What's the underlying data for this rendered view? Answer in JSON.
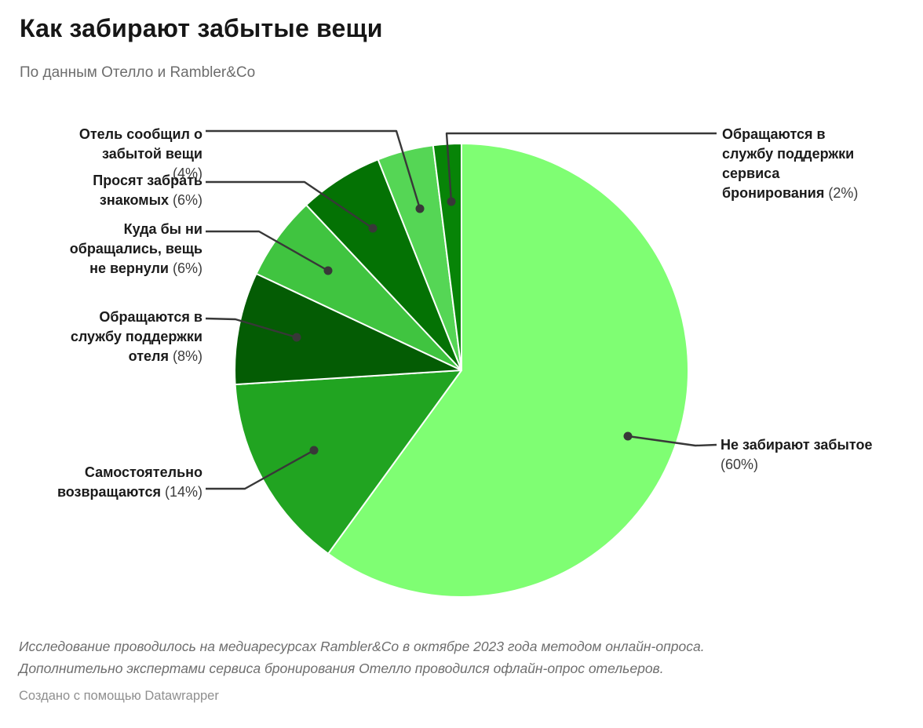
{
  "header": {
    "title": "Как забирают забытые вещи",
    "subtitle": "По данным Отелло и Rambler&Co"
  },
  "chart_data": {
    "type": "pie",
    "title": "Как забирают забытые вещи",
    "subtitle": "По данным Отелло и Rambler&Co",
    "unit": "%",
    "start_angle_deg": -90,
    "direction": "clockwise",
    "slices": [
      {
        "label": "Не забирают забытое",
        "value": 60,
        "pct_text": "(60%)",
        "color": "#7ffe73"
      },
      {
        "label": "Самостоятельно возвращаются",
        "value": 14,
        "pct_text": "(14%)",
        "color": "#21a421"
      },
      {
        "label": "Обращаются в службу поддержки отеля",
        "value": 8,
        "pct_text": "(8%)",
        "color": "#045c04"
      },
      {
        "label": "Куда бы ни обращались, вещь не вернули",
        "value": 6,
        "pct_text": "(6%)",
        "color": "#40c440"
      },
      {
        "label": "Просят забрать знакомых",
        "value": 6,
        "pct_text": "(6%)",
        "color": "#047204"
      },
      {
        "label": "Отель сообщил о забытой вещи",
        "value": 4,
        "pct_text": "(4%)",
        "color": "#55d655"
      },
      {
        "label": "Обращаются в службу поддержки сервиса бронирования",
        "value": 2,
        "pct_text": "(2%)",
        "color": "#078407"
      }
    ],
    "connector_color": "#383838"
  },
  "footer": {
    "note_line1": "Исследование проводилось на медиаресурсах Rambler&Co в октябре 2023 года методом онлайн-опроса.",
    "note_line2": "Дополнительно экспертами сервиса бронирования Отелло проводился офлайн-опрос отельеров.",
    "attribution": "Создано с помощью Datawrapper"
  }
}
